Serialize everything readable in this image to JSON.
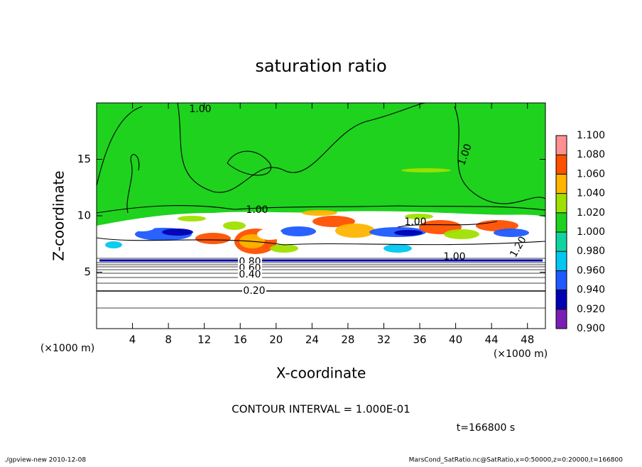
{
  "chart_data": {
    "type": "contour",
    "title": "saturation ratio",
    "x_label": "X-coordinate",
    "y_label": "Z-coordinate",
    "x_unit": "(×1000 m)",
    "y_unit": "(×1000 m)",
    "xlim": [
      0,
      50
    ],
    "ylim": [
      0,
      20
    ],
    "xticks": [
      4,
      8,
      12,
      16,
      20,
      24,
      28,
      32,
      36,
      40,
      44,
      48
    ],
    "yticks": [
      5,
      10,
      15
    ],
    "contour_labels": [
      "1.00",
      "1.00",
      "1.00",
      "1.00",
      "1.00",
      "0.80",
      "0.60",
      "0.40",
      "0.20",
      "1.20"
    ],
    "colorbar": {
      "levels": [
        {
          "value": 0.9,
          "label": "0.900"
        },
        {
          "value": 0.92,
          "label": "0.920"
        },
        {
          "value": 0.94,
          "label": "0.940"
        },
        {
          "value": 0.96,
          "label": "0.960"
        },
        {
          "value": 0.98,
          "label": "0.980"
        },
        {
          "value": 1.0,
          "label": "1.000"
        },
        {
          "value": 1.02,
          "label": "1.020"
        },
        {
          "value": 1.04,
          "label": "1.040"
        },
        {
          "value": 1.06,
          "label": "1.060"
        },
        {
          "value": 1.08,
          "label": "1.080"
        },
        {
          "value": 1.1,
          "label": "1.100"
        }
      ],
      "colors": [
        "#7a1fb4",
        "#0000b4",
        "#1e5aff",
        "#00c8f0",
        "#10d4a0",
        "#1ed21e",
        "#a0e000",
        "#ffb400",
        "#ff5000",
        "#ff9090"
      ]
    },
    "contour_interval": "CONTOUR INTERVAL = 1.000E-01",
    "time_label": "t=166800 s",
    "footer_left": "./gpview-new  2010-12-08",
    "footer_right": "MarsCond_SatRatio.nc@SatRatio,x=0:50000,z=0:20000,t=166800"
  }
}
